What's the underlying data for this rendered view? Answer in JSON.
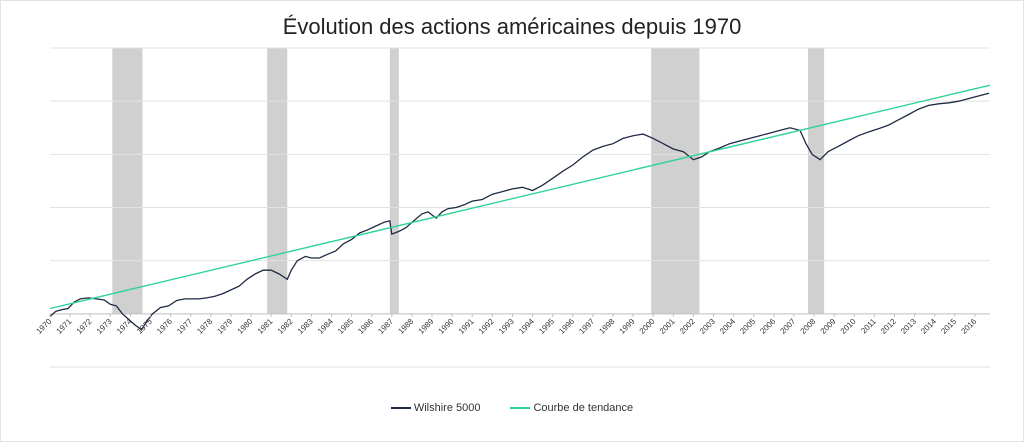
{
  "chart_data": {
    "type": "line",
    "title": "Évolution des actions américaines depuis 1970",
    "xlabel": "",
    "ylabel": "",
    "x_range": [
      1970,
      2016.75
    ],
    "y_range": [
      -1,
      5
    ],
    "y_grid_lines": [
      -1,
      0,
      1,
      2,
      3,
      4,
      5
    ],
    "grid": true,
    "legend_position": "bottom",
    "x_tick_labels": [
      "1970",
      "1971",
      "1972",
      "1973",
      "1974",
      "1975",
      "1976",
      "1977",
      "1978",
      "1979",
      "1980",
      "1981",
      "1982",
      "1983",
      "1984",
      "1985",
      "1986",
      "1987",
      "1988",
      "1989",
      "1990",
      "1991",
      "1992",
      "1993",
      "1994",
      "1995",
      "1996",
      "1997",
      "1998",
      "1999",
      "2000",
      "2001",
      "2002",
      "2003",
      "2004",
      "2005",
      "2006",
      "2007",
      "2008",
      "2009",
      "2010",
      "2011",
      "2012",
      "2013",
      "2014",
      "2015",
      "2016"
    ],
    "recessions": [
      {
        "start": 1973.1,
        "end": 1974.6
      },
      {
        "start": 1980.8,
        "end": 1981.8
      },
      {
        "start": 1986.9,
        "end": 1987.35
      },
      {
        "start": 1999.9,
        "end": 2002.3
      },
      {
        "start": 2007.7,
        "end": 2008.5
      }
    ],
    "series": [
      {
        "name": "Wilshire 5000",
        "color": "#1f2a44",
        "points": [
          [
            1970.0,
            -0.05
          ],
          [
            1970.3,
            0.05
          ],
          [
            1970.6,
            0.08
          ],
          [
            1970.9,
            0.1
          ],
          [
            1971.2,
            0.22
          ],
          [
            1971.5,
            0.28
          ],
          [
            1971.9,
            0.3
          ],
          [
            1972.3,
            0.28
          ],
          [
            1972.7,
            0.26
          ],
          [
            1973.0,
            0.18
          ],
          [
            1973.3,
            0.15
          ],
          [
            1973.6,
            0.0
          ],
          [
            1973.9,
            -0.1
          ],
          [
            1974.2,
            -0.2
          ],
          [
            1974.55,
            -0.3
          ],
          [
            1974.8,
            -0.15
          ],
          [
            1975.1,
            0.0
          ],
          [
            1975.5,
            0.12
          ],
          [
            1975.9,
            0.15
          ],
          [
            1976.3,
            0.25
          ],
          [
            1976.7,
            0.28
          ],
          [
            1977.0,
            0.28
          ],
          [
            1977.4,
            0.28
          ],
          [
            1977.8,
            0.3
          ],
          [
            1978.2,
            0.33
          ],
          [
            1978.6,
            0.38
          ],
          [
            1979.0,
            0.45
          ],
          [
            1979.4,
            0.52
          ],
          [
            1979.8,
            0.65
          ],
          [
            1980.2,
            0.75
          ],
          [
            1980.6,
            0.82
          ],
          [
            1981.0,
            0.82
          ],
          [
            1981.4,
            0.75
          ],
          [
            1981.8,
            0.65
          ],
          [
            1982.0,
            0.82
          ],
          [
            1982.3,
            1.0
          ],
          [
            1982.7,
            1.08
          ],
          [
            1983.0,
            1.05
          ],
          [
            1983.4,
            1.05
          ],
          [
            1983.8,
            1.12
          ],
          [
            1984.2,
            1.18
          ],
          [
            1984.6,
            1.32
          ],
          [
            1985.0,
            1.4
          ],
          [
            1985.4,
            1.52
          ],
          [
            1985.8,
            1.58
          ],
          [
            1986.2,
            1.65
          ],
          [
            1986.6,
            1.72
          ],
          [
            1986.9,
            1.75
          ],
          [
            1987.0,
            1.5
          ],
          [
            1987.35,
            1.55
          ],
          [
            1987.7,
            1.62
          ],
          [
            1988.0,
            1.72
          ],
          [
            1988.5,
            1.88
          ],
          [
            1988.8,
            1.92
          ],
          [
            1989.2,
            1.8
          ],
          [
            1989.5,
            1.92
          ],
          [
            1989.8,
            1.98
          ],
          [
            1990.2,
            2.0
          ],
          [
            1990.6,
            2.05
          ],
          [
            1991.0,
            2.12
          ],
          [
            1991.5,
            2.15
          ],
          [
            1992.0,
            2.25
          ],
          [
            1992.5,
            2.3
          ],
          [
            1993.0,
            2.35
          ],
          [
            1993.5,
            2.38
          ],
          [
            1994.0,
            2.32
          ],
          [
            1994.5,
            2.42
          ],
          [
            1995.0,
            2.55
          ],
          [
            1995.5,
            2.68
          ],
          [
            1996.0,
            2.8
          ],
          [
            1996.5,
            2.95
          ],
          [
            1997.0,
            3.08
          ],
          [
            1997.5,
            3.15
          ],
          [
            1998.0,
            3.2
          ],
          [
            1998.5,
            3.3
          ],
          [
            1999.0,
            3.35
          ],
          [
            1999.5,
            3.38
          ],
          [
            2000.0,
            3.3
          ],
          [
            2000.5,
            3.2
          ],
          [
            2001.0,
            3.1
          ],
          [
            2001.5,
            3.05
          ],
          [
            2002.0,
            2.9
          ],
          [
            2002.4,
            2.95
          ],
          [
            2002.8,
            3.05
          ],
          [
            2003.3,
            3.12
          ],
          [
            2003.8,
            3.2
          ],
          [
            2004.3,
            3.25
          ],
          [
            2004.8,
            3.3
          ],
          [
            2005.3,
            3.35
          ],
          [
            2005.8,
            3.4
          ],
          [
            2006.3,
            3.45
          ],
          [
            2006.8,
            3.5
          ],
          [
            2007.3,
            3.45
          ],
          [
            2007.6,
            3.2
          ],
          [
            2007.9,
            3.0
          ],
          [
            2008.3,
            2.9
          ],
          [
            2008.7,
            3.05
          ],
          [
            2009.2,
            3.15
          ],
          [
            2009.7,
            3.25
          ],
          [
            2010.2,
            3.35
          ],
          [
            2010.7,
            3.42
          ],
          [
            2011.2,
            3.48
          ],
          [
            2011.7,
            3.55
          ],
          [
            2012.2,
            3.65
          ],
          [
            2012.7,
            3.75
          ],
          [
            2013.2,
            3.85
          ],
          [
            2013.7,
            3.92
          ],
          [
            2014.2,
            3.95
          ],
          [
            2014.7,
            3.97
          ],
          [
            2015.2,
            4.0
          ],
          [
            2015.7,
            4.05
          ],
          [
            2016.2,
            4.1
          ],
          [
            2016.7,
            4.15
          ]
        ]
      },
      {
        "name": "Courbe de tendance",
        "color": "#2ed39a",
        "points": [
          [
            1970.0,
            0.1
          ],
          [
            2016.75,
            4.3
          ]
        ]
      }
    ]
  }
}
